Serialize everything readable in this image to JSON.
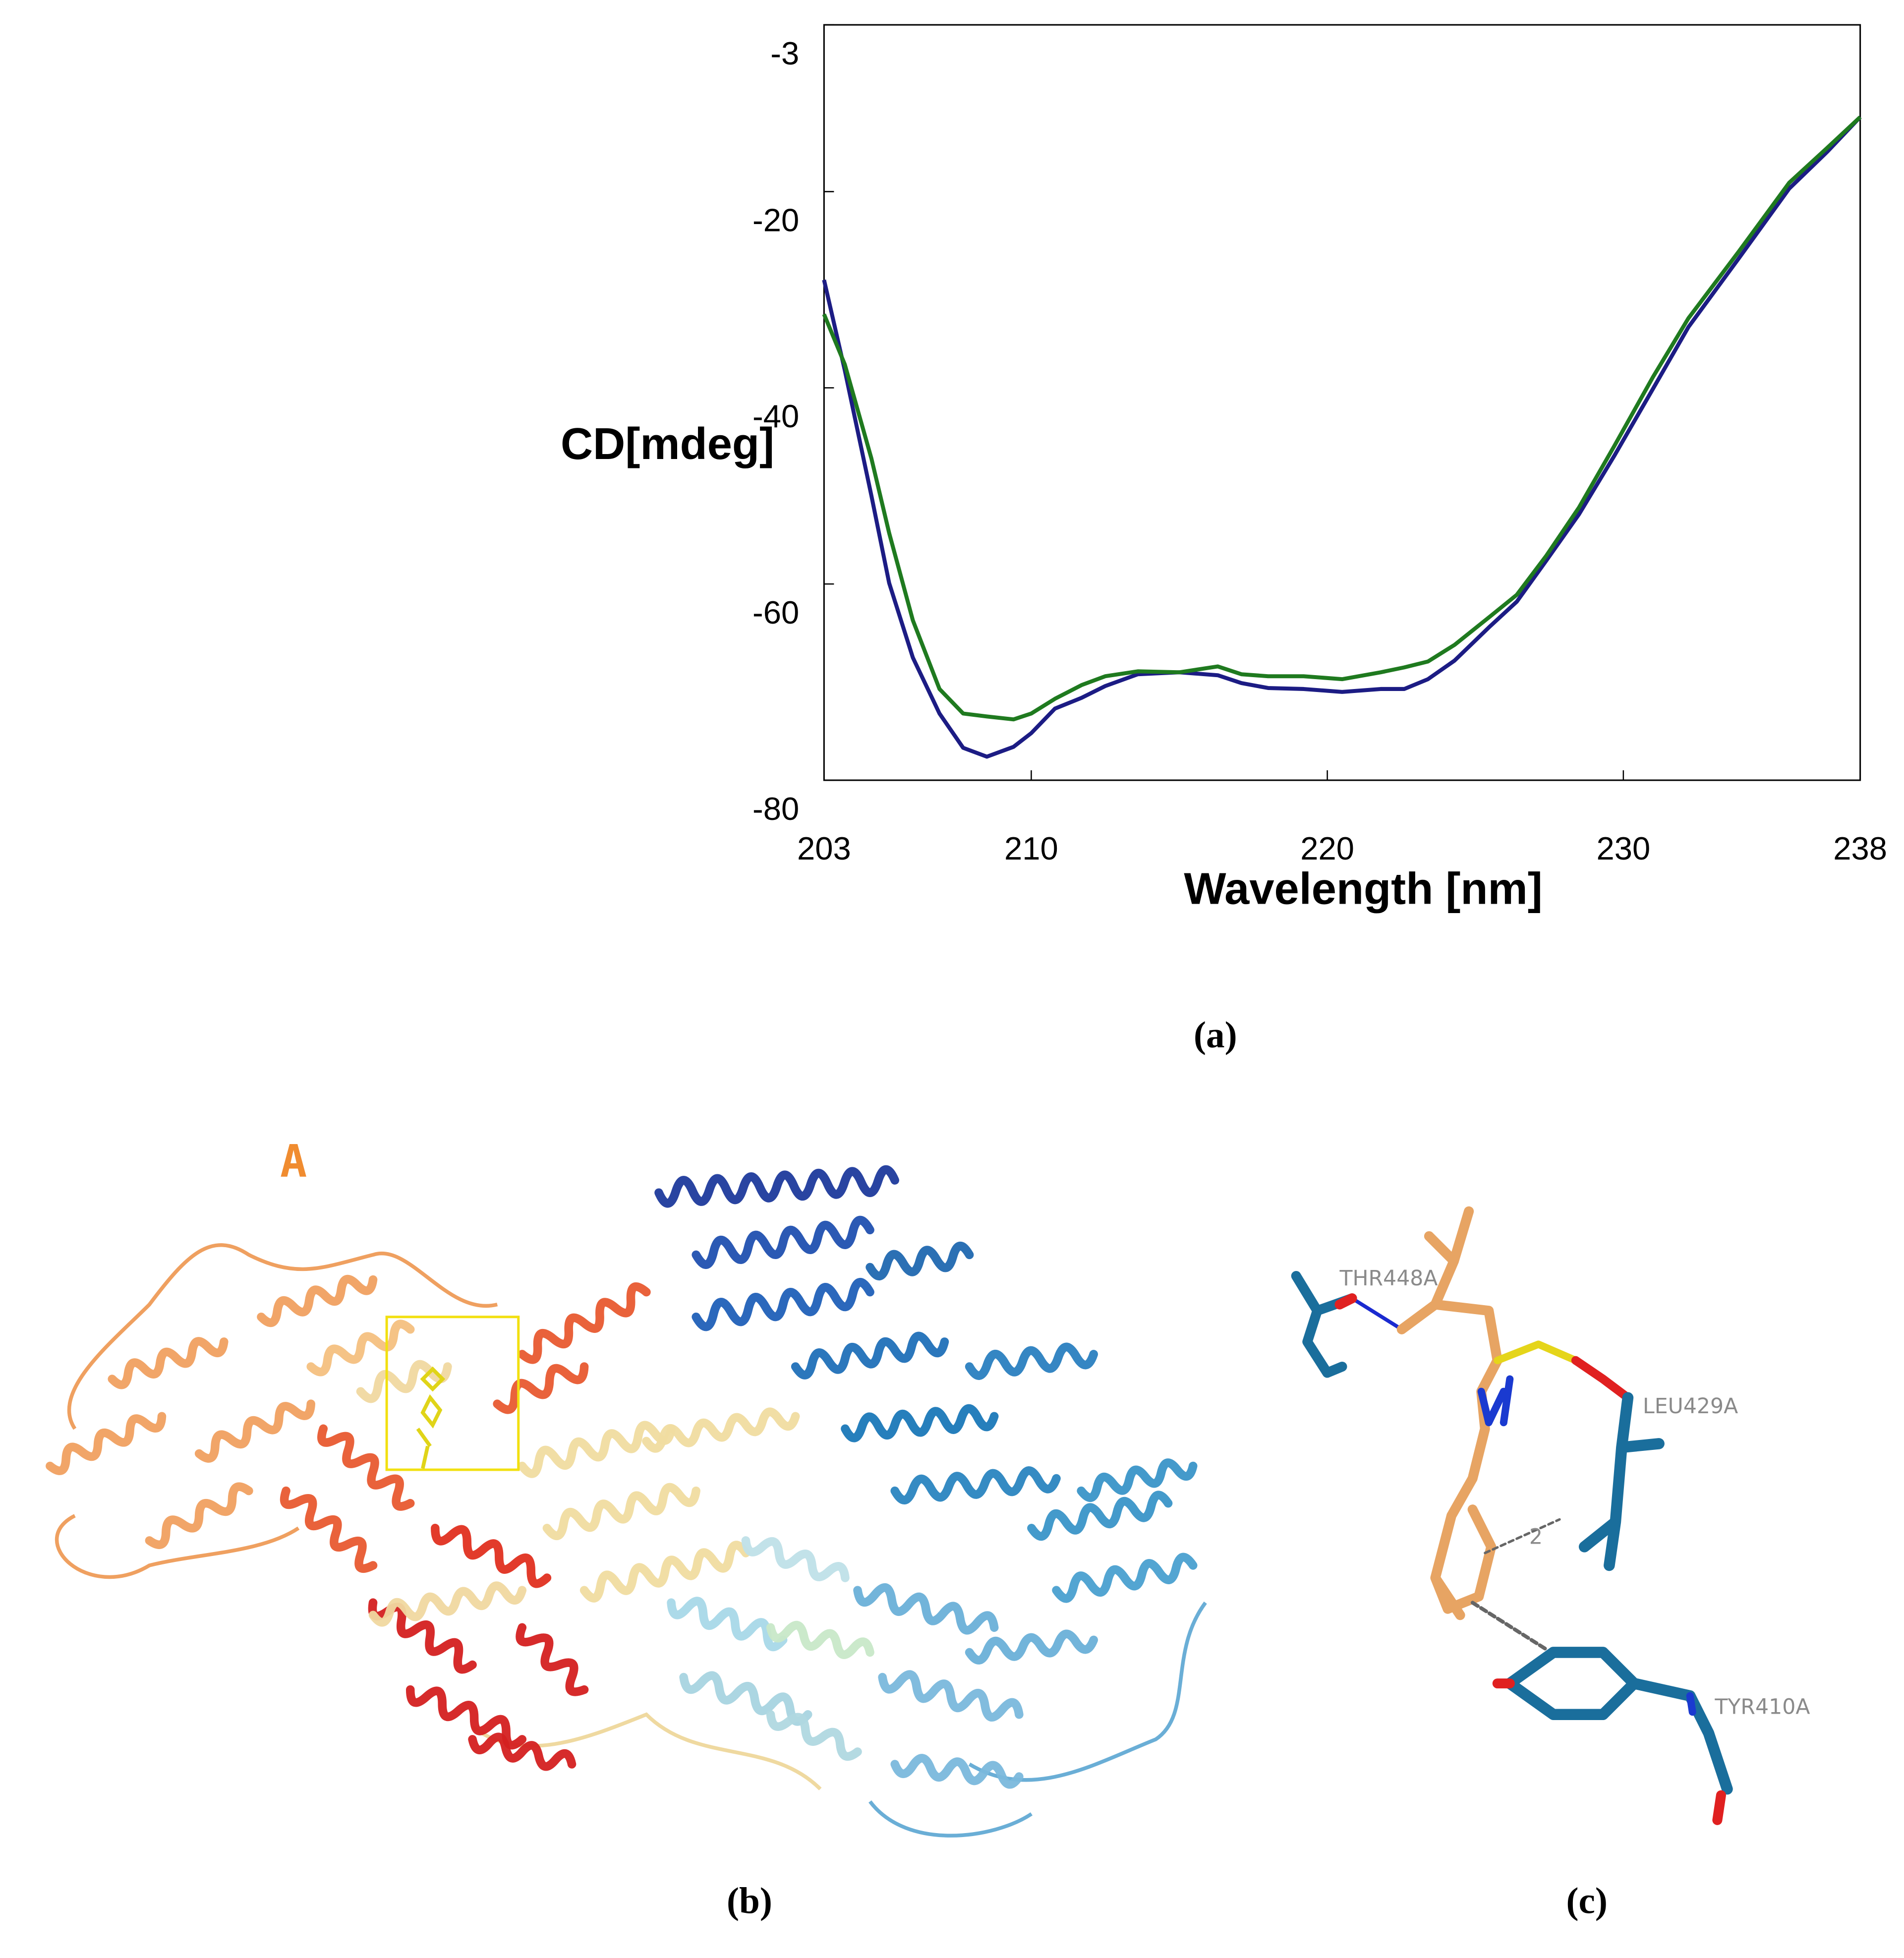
{
  "chart_data": {
    "type": "line",
    "ylabel": "CD[mdeg]",
    "xlabel": "Wavelength [nm]",
    "xlim": [
      203,
      238
    ],
    "xticks": [
      203,
      210,
      220,
      230,
      238
    ],
    "ylim": [
      -80,
      -3
    ],
    "yticks": [
      -3,
      -20,
      -40,
      -60,
      -80
    ],
    "x": [
      203,
      203.7,
      204.6,
      205.2,
      206.0,
      206.9,
      207.7,
      208.5,
      209.4,
      210.0,
      210.8,
      211.7,
      212.5,
      213.6,
      215.0,
      216.3,
      217.1,
      218.0,
      219.2,
      220.5,
      221.8,
      222.6,
      223.4,
      224.3,
      225.5,
      226.4,
      227.4,
      228.5,
      229.7,
      231.0,
      232.2,
      233.9,
      235.6,
      236.9,
      238
    ],
    "series": [
      {
        "color": "#1c1c84",
        "values": [
          -29.0,
          -38.2,
          -51.0,
          -59.9,
          -67.5,
          -73.2,
          -76.7,
          -77.6,
          -76.6,
          -75.2,
          -72.7,
          -71.6,
          -70.4,
          -69.2,
          -69.0,
          -69.3,
          -70.1,
          -70.6,
          -70.7,
          -71.0,
          -70.7,
          -70.7,
          -69.7,
          -67.8,
          -64.3,
          -61.8,
          -57.6,
          -52.9,
          -46.9,
          -40.1,
          -33.8,
          -26.8,
          -19.7,
          -15.9,
          -12.4
        ]
      },
      {
        "color": "#1f7a1f",
        "values": [
          -32.5,
          -37.6,
          -47.2,
          -54.8,
          -63.7,
          -70.7,
          -73.2,
          -73.5,
          -73.8,
          -73.2,
          -71.7,
          -70.3,
          -69.4,
          -68.9,
          -69.0,
          -68.4,
          -69.2,
          -69.4,
          -69.4,
          -69.7,
          -69.0,
          -68.5,
          -67.9,
          -66.2,
          -63.3,
          -61.1,
          -57.1,
          -52.2,
          -45.9,
          -38.9,
          -32.9,
          -26.1,
          -19.1,
          -15.5,
          -12.4
        ]
      }
    ]
  },
  "panels": {
    "a": {
      "caption": "(a)"
    },
    "b": {
      "caption": "(b)",
      "chain_label": "A"
    },
    "c": {
      "caption": "(c)",
      "residues": [
        "THR448A",
        "LEU429A",
        "TYR410A"
      ],
      "distance_label": "2"
    }
  }
}
